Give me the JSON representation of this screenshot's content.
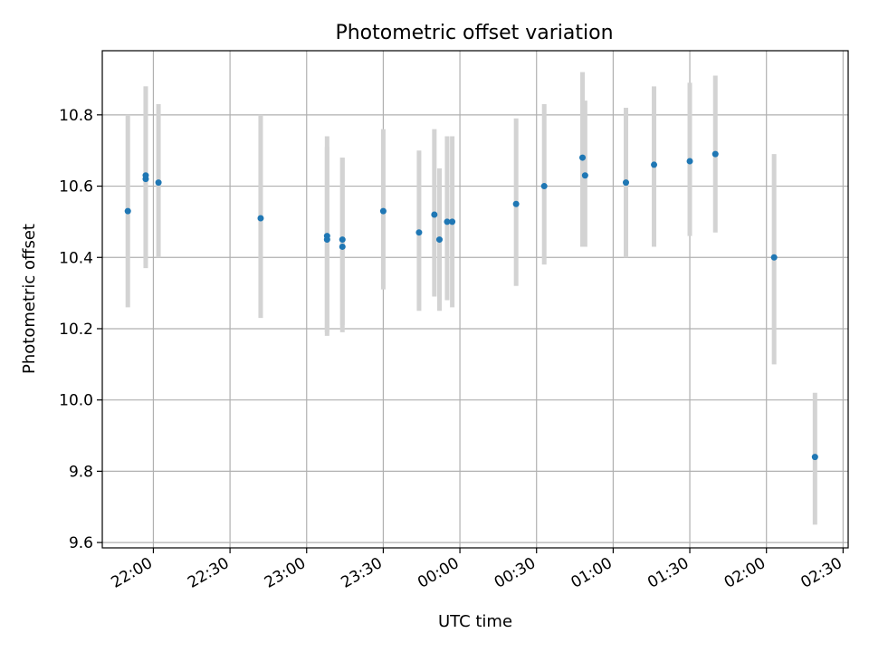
{
  "chart_data": {
    "type": "scatter",
    "title": "Photometric offset variation",
    "xlabel": "UTC time",
    "ylabel": "Photometric offset",
    "grid": true,
    "legend": "none",
    "x_ticks": [
      "22:00",
      "22:30",
      "23:00",
      "23:30",
      "00:00",
      "00:30",
      "01:00",
      "01:30",
      "02:00",
      "02:30"
    ],
    "x_tick_minutes": [
      1320,
      1350,
      1380,
      1410,
      1440,
      1470,
      1500,
      1530,
      1560,
      1590
    ],
    "xlim_minutes": [
      1300,
      1592
    ],
    "y_ticks": [
      "9.6",
      "9.8",
      "10.0",
      "10.2",
      "10.4",
      "10.6",
      "10.8"
    ],
    "ylim": [
      9.585,
      10.98
    ],
    "point_color": "#1f77b4",
    "errorbar_color": "#d3d3d3",
    "points": [
      {
        "t": "21:50",
        "y": 10.53,
        "lo": 10.26,
        "hi": 10.8
      },
      {
        "t": "21:57",
        "y": 10.62,
        "lo": 10.37,
        "hi": 10.88
      },
      {
        "t": "21:57",
        "y": 10.63,
        "lo": 10.38,
        "hi": 10.88
      },
      {
        "t": "22:02",
        "y": 10.61,
        "lo": 10.4,
        "hi": 10.83
      },
      {
        "t": "22:42",
        "y": 10.51,
        "lo": 10.23,
        "hi": 10.8
      },
      {
        "t": "23:08",
        "y": 10.46,
        "lo": 10.18,
        "hi": 10.74
      },
      {
        "t": "23:08",
        "y": 10.45,
        "lo": 10.19,
        "hi": 10.71
      },
      {
        "t": "23:14",
        "y": 10.43,
        "lo": 10.19,
        "hi": 10.68
      },
      {
        "t": "23:14",
        "y": 10.45,
        "lo": 10.21,
        "hi": 10.68
      },
      {
        "t": "23:30",
        "y": 10.53,
        "lo": 10.31,
        "hi": 10.76
      },
      {
        "t": "23:44",
        "y": 10.47,
        "lo": 10.25,
        "hi": 10.7
      },
      {
        "t": "23:50",
        "y": 10.52,
        "lo": 10.29,
        "hi": 10.76
      },
      {
        "t": "23:52",
        "y": 10.45,
        "lo": 10.25,
        "hi": 10.65
      },
      {
        "t": "23:55",
        "y": 10.5,
        "lo": 10.28,
        "hi": 10.74
      },
      {
        "t": "23:57",
        "y": 10.5,
        "lo": 10.26,
        "hi": 10.74
      },
      {
        "t": "00:22",
        "y": 10.55,
        "lo": 10.32,
        "hi": 10.79
      },
      {
        "t": "00:33",
        "y": 10.6,
        "lo": 10.38,
        "hi": 10.83
      },
      {
        "t": "00:48",
        "y": 10.68,
        "lo": 10.43,
        "hi": 10.92
      },
      {
        "t": "00:49",
        "y": 10.63,
        "lo": 10.43,
        "hi": 10.84
      },
      {
        "t": "01:05",
        "y": 10.61,
        "lo": 10.4,
        "hi": 10.82
      },
      {
        "t": "01:16",
        "y": 10.66,
        "lo": 10.43,
        "hi": 10.88
      },
      {
        "t": "01:30",
        "y": 10.67,
        "lo": 10.46,
        "hi": 10.89
      },
      {
        "t": "01:40",
        "y": 10.69,
        "lo": 10.47,
        "hi": 10.91
      },
      {
        "t": "02:03",
        "y": 10.4,
        "lo": 10.1,
        "hi": 10.69
      },
      {
        "t": "02:19",
        "y": 9.84,
        "lo": 9.65,
        "hi": 10.02
      }
    ]
  }
}
